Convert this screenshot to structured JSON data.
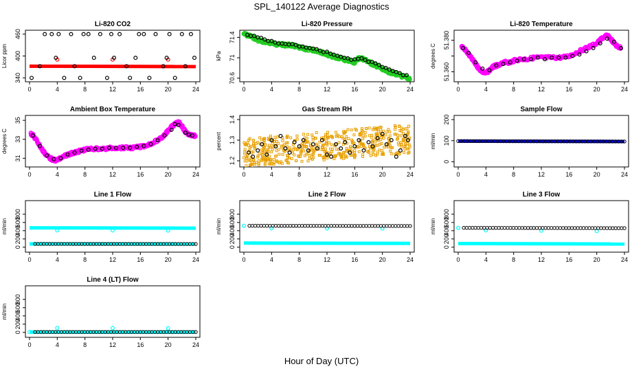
{
  "page": {
    "title": "SPL_140122  Average Diagnostics",
    "xlabel": "Hour of Day (UTC)"
  },
  "colors": {
    "red": "#ff0000",
    "green": "#22cc22",
    "magenta": "#ff00ff",
    "orange": "#e8a000",
    "blue": "#0000cc",
    "cyan": "#00ffff",
    "black": "#000000"
  },
  "chart_data": [
    {
      "type": "scatter",
      "title": "Li-820 CO2",
      "ylabel": "Licor ppm",
      "xlim": [
        0,
        24
      ],
      "ylim": [
        335,
        465
      ],
      "xticks": [
        0,
        4,
        8,
        12,
        16,
        20,
        24
      ],
      "yticks": [
        340,
        400,
        460
      ],
      "series": [
        {
          "color": "#ff0000",
          "marker": "line",
          "x": [
            0,
            24
          ],
          "y": [
            372,
            371
          ]
        },
        {
          "color": "#ff0000",
          "marker": "circle",
          "x": [
            4,
            12,
            20
          ],
          "y": [
            390,
            390,
            390
          ]
        },
        {
          "color": "#000000",
          "marker": "circle",
          "x": [
            0.3,
            1.5,
            2.2,
            3.2,
            3.8,
            4.2,
            5.0,
            6.0,
            6.5,
            7.3,
            7.8,
            8.5,
            9.3,
            10.2,
            11.2,
            11.8,
            12.2,
            13.0,
            14.0,
            14.5,
            15.3,
            15.8,
            16.5,
            17.3,
            18.2,
            19.3,
            19.8,
            20.2,
            21.0,
            22.0,
            22.5,
            23.3,
            23.8
          ],
          "y": [
            340,
            372,
            460,
            460,
            395,
            460,
            340,
            460,
            372,
            340,
            460,
            460,
            395,
            460,
            340,
            460,
            395,
            460,
            372,
            340,
            395,
            460,
            460,
            340,
            460,
            372,
            395,
            460,
            340,
            460,
            372,
            460,
            395
          ]
        }
      ]
    },
    {
      "type": "scatter",
      "title": "Li-820 Pressure",
      "ylabel": "kPa",
      "xlim": [
        0,
        24
      ],
      "ylim": [
        70.57,
        71.5
      ],
      "xticks": [
        0,
        4,
        8,
        12,
        16,
        20,
        24
      ],
      "yticks": [
        70.6,
        71.0,
        71.4
      ],
      "series": [
        {
          "color": "#22cc22",
          "marker": "dense",
          "x": [
            0,
            0.5,
            1,
            1.5,
            2,
            2.5,
            3,
            3.5,
            4,
            4.5,
            5,
            5.5,
            6,
            6.5,
            7,
            7.5,
            8,
            8.5,
            9,
            9.5,
            10,
            10.5,
            11,
            11.5,
            12,
            12.5,
            13,
            13.5,
            14,
            14.5,
            15,
            15.5,
            16,
            16.5,
            17,
            17.5,
            18,
            18.5,
            19,
            19.5,
            20,
            20.5,
            21,
            21.5,
            22,
            22.5,
            23,
            23.5,
            24
          ],
          "y": [
            71.47,
            71.44,
            71.42,
            71.39,
            71.35,
            71.33,
            71.31,
            71.29,
            71.3,
            71.27,
            71.26,
            71.26,
            71.25,
            71.25,
            71.24,
            71.22,
            71.2,
            71.18,
            71.17,
            71.16,
            71.15,
            71.14,
            71.12,
            71.09,
            71.07,
            71.04,
            71.02,
            71.0,
            70.99,
            70.96,
            70.95,
            70.93,
            70.91,
            70.99,
            70.99,
            70.96,
            70.92,
            70.88,
            70.85,
            70.82,
            70.77,
            70.74,
            70.72,
            70.7,
            70.68,
            70.65,
            70.63,
            70.61,
            70.59
          ]
        },
        {
          "color": "#000000",
          "marker": "circle",
          "x": [
            0.5,
            1.0,
            1.5,
            2.0,
            2.5,
            3.0,
            3.5,
            4.0,
            4.5,
            5.0,
            5.5,
            6.0,
            6.5,
            7.0,
            7.5,
            8.0,
            8.5,
            9.0,
            9.5,
            10.0,
            10.5,
            11.0,
            11.5,
            12.0,
            12.5,
            13.0,
            13.5,
            14.0,
            14.5,
            15.0,
            15.5,
            16.0,
            16.5,
            17.0,
            17.5,
            18.0,
            18.5,
            19.0,
            19.5,
            20.0,
            20.5,
            21.0,
            21.5,
            22.0,
            22.5,
            23.0,
            23.5
          ],
          "y": [
            71.45,
            71.43,
            71.43,
            71.4,
            71.39,
            71.36,
            71.33,
            71.33,
            71.3,
            71.28,
            71.28,
            71.27,
            71.26,
            71.27,
            71.25,
            71.22,
            71.22,
            71.2,
            71.19,
            71.18,
            71.17,
            71.14,
            71.11,
            71.12,
            71.08,
            71.06,
            71.04,
            71.02,
            71.0,
            70.99,
            70.96,
            70.97,
            70.98,
            70.99,
            70.96,
            70.92,
            70.92,
            70.89,
            70.86,
            70.82,
            70.8,
            70.77,
            70.74,
            70.72,
            70.7,
            70.66,
            70.66
          ]
        }
      ]
    },
    {
      "type": "scatter",
      "title": "Li-820 Temperature",
      "ylabel": "degrees C",
      "xlim": [
        0,
        24
      ],
      "ylim": [
        51.355,
        51.385
      ],
      "xticks": [
        0,
        4,
        8,
        12,
        16,
        20,
        24
      ],
      "yticks": [
        51.36,
        51.37,
        51.38
      ],
      "yticklabels": [
        "51.360",
        "",
        "51.380"
      ],
      "series": [
        {
          "color": "#ff00ff",
          "marker": "dense",
          "x": [
            0.5,
            1.0,
            1.5,
            2.0,
            2.5,
            3.0,
            3.5,
            4.0,
            4.5,
            5.0,
            5.5,
            6.0,
            6.5,
            7.0,
            7.5,
            8.0,
            9.0,
            10.0,
            11.0,
            12.0,
            13.0,
            14.0,
            15.0,
            16.0,
            17.0,
            18.0,
            19.0,
            20.0,
            20.5,
            21.0,
            21.5,
            22.0,
            22.5,
            23.0,
            23.5
          ],
          "y": [
            51.376,
            51.374,
            51.371,
            51.368,
            51.365,
            51.362,
            51.36,
            51.359,
            51.361,
            51.363,
            51.364,
            51.364,
            51.366,
            51.366,
            51.366,
            51.367,
            51.368,
            51.368,
            51.369,
            51.369,
            51.369,
            51.369,
            51.369,
            51.37,
            51.372,
            51.374,
            51.376,
            51.378,
            51.38,
            51.382,
            51.383,
            51.381,
            51.378,
            51.376,
            51.375
          ]
        },
        {
          "color": "#000000",
          "marker": "circle",
          "x": [
            0.7,
            1.5,
            2.5,
            3.5,
            4.5,
            5.5,
            6.5,
            7.5,
            8.5,
            9.5,
            10.5,
            11.5,
            12.5,
            13.5,
            14.5,
            15.5,
            16.5,
            17.5,
            18.5,
            19.5,
            20.5,
            21.5,
            22.5,
            23.5
          ],
          "y": [
            51.375,
            51.372,
            51.366,
            51.362,
            51.361,
            51.364,
            51.365,
            51.366,
            51.367,
            51.368,
            51.368,
            51.369,
            51.368,
            51.369,
            51.369,
            51.369,
            51.37,
            51.371,
            51.373,
            51.375,
            51.378,
            51.381,
            51.379,
            51.375
          ]
        }
      ]
    },
    {
      "type": "scatter",
      "title": "Ambient Box Temperature",
      "ylabel": "degrees C",
      "xlim": [
        0,
        24
      ],
      "ylim": [
        30.3,
        35.3
      ],
      "xticks": [
        0,
        4,
        8,
        12,
        16,
        20,
        24
      ],
      "yticks": [
        31,
        33,
        35
      ],
      "series": [
        {
          "color": "#ff00ff",
          "marker": "dense",
          "x": [
            0.2,
            0.5,
            1,
            1.5,
            2,
            2.5,
            3,
            3.5,
            4,
            4.5,
            5,
            5.5,
            6,
            6.5,
            7,
            7.5,
            8,
            9,
            10,
            11,
            12,
            13,
            14,
            15,
            16,
            17,
            18,
            19,
            19.5,
            20,
            20.5,
            21,
            21.5,
            22,
            22.5,
            23,
            23.5,
            24
          ],
          "y": [
            33.6,
            33.4,
            32.9,
            32.3,
            31.7,
            31.3,
            31.0,
            30.8,
            30.8,
            31.0,
            31.2,
            31.4,
            31.5,
            31.6,
            31.7,
            31.8,
            31.9,
            32.0,
            32.0,
            32.0,
            32.1,
            32.1,
            32.1,
            32.1,
            32.2,
            32.4,
            32.7,
            33.1,
            33.5,
            33.9,
            34.3,
            34.6,
            34.8,
            34.4,
            33.8,
            33.5,
            33.4,
            33.4
          ]
        },
        {
          "color": "#000000",
          "marker": "circle",
          "x": [
            0.5,
            1.5,
            2.5,
            3.5,
            4.5,
            5.5,
            6.5,
            7.5,
            8.5,
            9.5,
            10.5,
            11.5,
            12.5,
            13.5,
            14.5,
            15.5,
            16.5,
            17.5,
            18.5,
            19.5,
            20.5,
            21.0,
            21.5,
            22.5,
            23.0,
            23.5
          ],
          "y": [
            33.4,
            32.3,
            31.3,
            30.9,
            31.0,
            31.4,
            31.6,
            31.8,
            31.9,
            32.0,
            32.0,
            32.1,
            32.1,
            32.1,
            32.1,
            32.2,
            32.3,
            32.5,
            32.9,
            33.4,
            34.0,
            34.6,
            34.5,
            33.7,
            33.5,
            33.4
          ]
        }
      ]
    },
    {
      "type": "scatter",
      "title": "Gas Stream RH",
      "ylabel": "percent",
      "xlim": [
        0,
        24
      ],
      "ylim": [
        1.18,
        1.41
      ],
      "xticks": [
        0,
        4,
        8,
        12,
        16,
        20,
        24
      ],
      "yticks": [
        1.2,
        1.3,
        1.4
      ],
      "series": [
        {
          "color": "#e8a000",
          "marker": "noise",
          "x": [
            0,
            24
          ],
          "y": [
            1.22,
            1.34
          ]
        },
        {
          "color": "#000000",
          "marker": "circle",
          "x": [
            0.7,
            1.3,
            2.0,
            2.6,
            3.3,
            4.0,
            4.6,
            5.3,
            6.0,
            6.6,
            7.3,
            8.0,
            8.6,
            9.3,
            10.0,
            10.6,
            11.3,
            12.0,
            12.6,
            13.3,
            14.0,
            14.6,
            15.3,
            16.0,
            16.6,
            17.3,
            18.0,
            18.6,
            19.3,
            20.0,
            20.6,
            21.3,
            22.0,
            22.6,
            23.3,
            23.7
          ],
          "y": [
            1.24,
            1.22,
            1.25,
            1.28,
            1.23,
            1.3,
            1.27,
            1.32,
            1.26,
            1.24,
            1.29,
            1.27,
            1.3,
            1.25,
            1.28,
            1.26,
            1.3,
            1.23,
            1.22,
            1.28,
            1.26,
            1.29,
            1.24,
            1.27,
            1.3,
            1.25,
            1.29,
            1.27,
            1.31,
            1.33,
            1.28,
            1.3,
            1.22,
            1.25,
            1.32,
            1.3
          ]
        }
      ]
    },
    {
      "type": "scatter",
      "title": "Sample Flow",
      "ylabel": "ml/min",
      "xlim": [
        0,
        24
      ],
      "ylim": [
        -15,
        210
      ],
      "xticks": [
        0,
        4,
        8,
        12,
        16,
        20,
        24
      ],
      "yticks": [
        0,
        100,
        200
      ],
      "series": [
        {
          "color": "#0000cc",
          "marker": "line",
          "x": [
            0,
            24
          ],
          "y": [
            98,
            96
          ]
        },
        {
          "color": "#000000",
          "marker": "circleRow",
          "x": [
            0,
            24
          ],
          "y": [
            98,
            96
          ]
        }
      ]
    },
    {
      "type": "scatter",
      "title": "Line 1 Flow",
      "ylabel": "ml/min",
      "xlim": [
        0,
        24
      ],
      "ylim": [
        -70,
        1080
      ],
      "xticks": [
        0,
        4,
        8,
        12,
        16,
        20,
        24
      ],
      "yticks": [
        0,
        200,
        400,
        600,
        800
      ],
      "series": [
        {
          "color": "#00ffff",
          "marker": "line",
          "x": [
            0,
            24
          ],
          "y": [
            470,
            462
          ]
        },
        {
          "color": "#00ffff",
          "marker": "line",
          "x": [
            0,
            24
          ],
          "y": [
            80,
            78
          ]
        },
        {
          "color": "#00ffff",
          "marker": "circle",
          "x": [
            4,
            12,
            20
          ],
          "y": [
            410,
            410,
            405
          ]
        },
        {
          "color": "#000000",
          "marker": "circleRow",
          "x": [
            0.8,
            24
          ],
          "y": [
            80,
            78
          ]
        }
      ]
    },
    {
      "type": "scatter",
      "title": "Line 2 Flow",
      "ylabel": "ml/min",
      "xlim": [
        0,
        24
      ],
      "ylim": [
        -70,
        1080
      ],
      "xticks": [
        0,
        4,
        8,
        12,
        16,
        20,
        24
      ],
      "yticks": [
        0,
        200,
        400,
        600,
        800
      ],
      "series": [
        {
          "color": "#00ffff",
          "marker": "line",
          "x": [
            0,
            24
          ],
          "y": [
            100,
            92
          ]
        },
        {
          "color": "#00ffff",
          "marker": "circle",
          "x": [
            0,
            4,
            12,
            20
          ],
          "y": [
            520,
            460,
            455,
            455
          ]
        },
        {
          "color": "#000000",
          "marker": "circleRow",
          "x": [
            0.8,
            24
          ],
          "y": [
            520,
            515
          ]
        }
      ]
    },
    {
      "type": "scatter",
      "title": "Line 3 Flow",
      "ylabel": "ml/min",
      "xlim": [
        0,
        24
      ],
      "ylim": [
        -70,
        1080
      ],
      "xticks": [
        0,
        4,
        8,
        12,
        16,
        20,
        24
      ],
      "yticks": [
        0,
        200,
        400,
        600,
        800
      ],
      "series": [
        {
          "color": "#00ffff",
          "marker": "line",
          "x": [
            0,
            24
          ],
          "y": [
            88,
            78
          ]
        },
        {
          "color": "#00ffff",
          "marker": "circle",
          "x": [
            0,
            4,
            12,
            20
          ],
          "y": [
            470,
            410,
            400,
            390
          ]
        },
        {
          "color": "#000000",
          "marker": "circleRow",
          "x": [
            0.8,
            24
          ],
          "y": [
            470,
            462
          ]
        }
      ]
    },
    {
      "type": "scatter",
      "title": "Line 4 (LT) Flow",
      "ylabel": "ml/min",
      "xlim": [
        0,
        24
      ],
      "ylim": [
        -70,
        1080
      ],
      "xticks": [
        0,
        4,
        8,
        12,
        16,
        20,
        24
      ],
      "yticks": [
        0,
        200,
        400,
        600,
        800
      ],
      "series": [
        {
          "color": "#00ffff",
          "marker": "line",
          "x": [
            0,
            24
          ],
          "y": [
            8,
            8
          ]
        },
        {
          "color": "#00ffff",
          "marker": "circle",
          "x": [
            0,
            4,
            12,
            20
          ],
          "y": [
            10,
            110,
            105,
            100
          ]
        },
        {
          "color": "#000000",
          "marker": "circleRow",
          "x": [
            0.8,
            24
          ],
          "y": [
            10,
            10
          ]
        }
      ]
    }
  ]
}
